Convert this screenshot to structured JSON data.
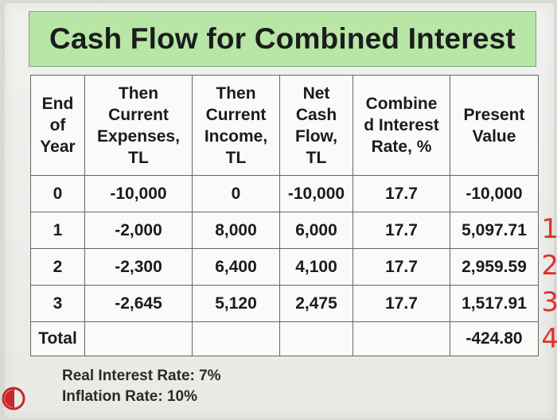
{
  "title": "Cash Flow for Combined Interest",
  "table": {
    "headers": [
      [
        "End",
        "of",
        "Year"
      ],
      [
        "Then",
        "Current",
        "Expenses,",
        "TL"
      ],
      [
        "Then",
        "Current",
        "Income,",
        "TL"
      ],
      [
        "Net",
        "Cash",
        "Flow,",
        "TL"
      ],
      [
        "Combine",
        "d Interest",
        "Rate, %"
      ],
      [
        "Present",
        "Value"
      ]
    ],
    "rows": [
      [
        "0",
        "-10,000",
        "0",
        "-10,000",
        "17.7",
        "-10,000"
      ],
      [
        "1",
        "-2,000",
        "8,000",
        "6,000",
        "17.7",
        "5,097.71"
      ],
      [
        "2",
        "-2,300",
        "6,400",
        "4,100",
        "17.7",
        "2,959.59"
      ],
      [
        "3",
        "-2,645",
        "5,120",
        "2,475",
        "17.7",
        "1,517.91"
      ]
    ],
    "total_label": "Total",
    "total_value": "-424.80"
  },
  "handwritten_marks": [
    "1",
    "2",
    "3",
    "4"
  ],
  "notes": {
    "real_interest": "Real Interest Rate: 7%",
    "inflation": "Inflation Rate: 10%"
  },
  "colors": {
    "title_bg": "#b7e6a7",
    "mark": "#e0322a",
    "logo_red": "#c8252c"
  },
  "icons": {
    "logo": "university-logo-icon"
  }
}
